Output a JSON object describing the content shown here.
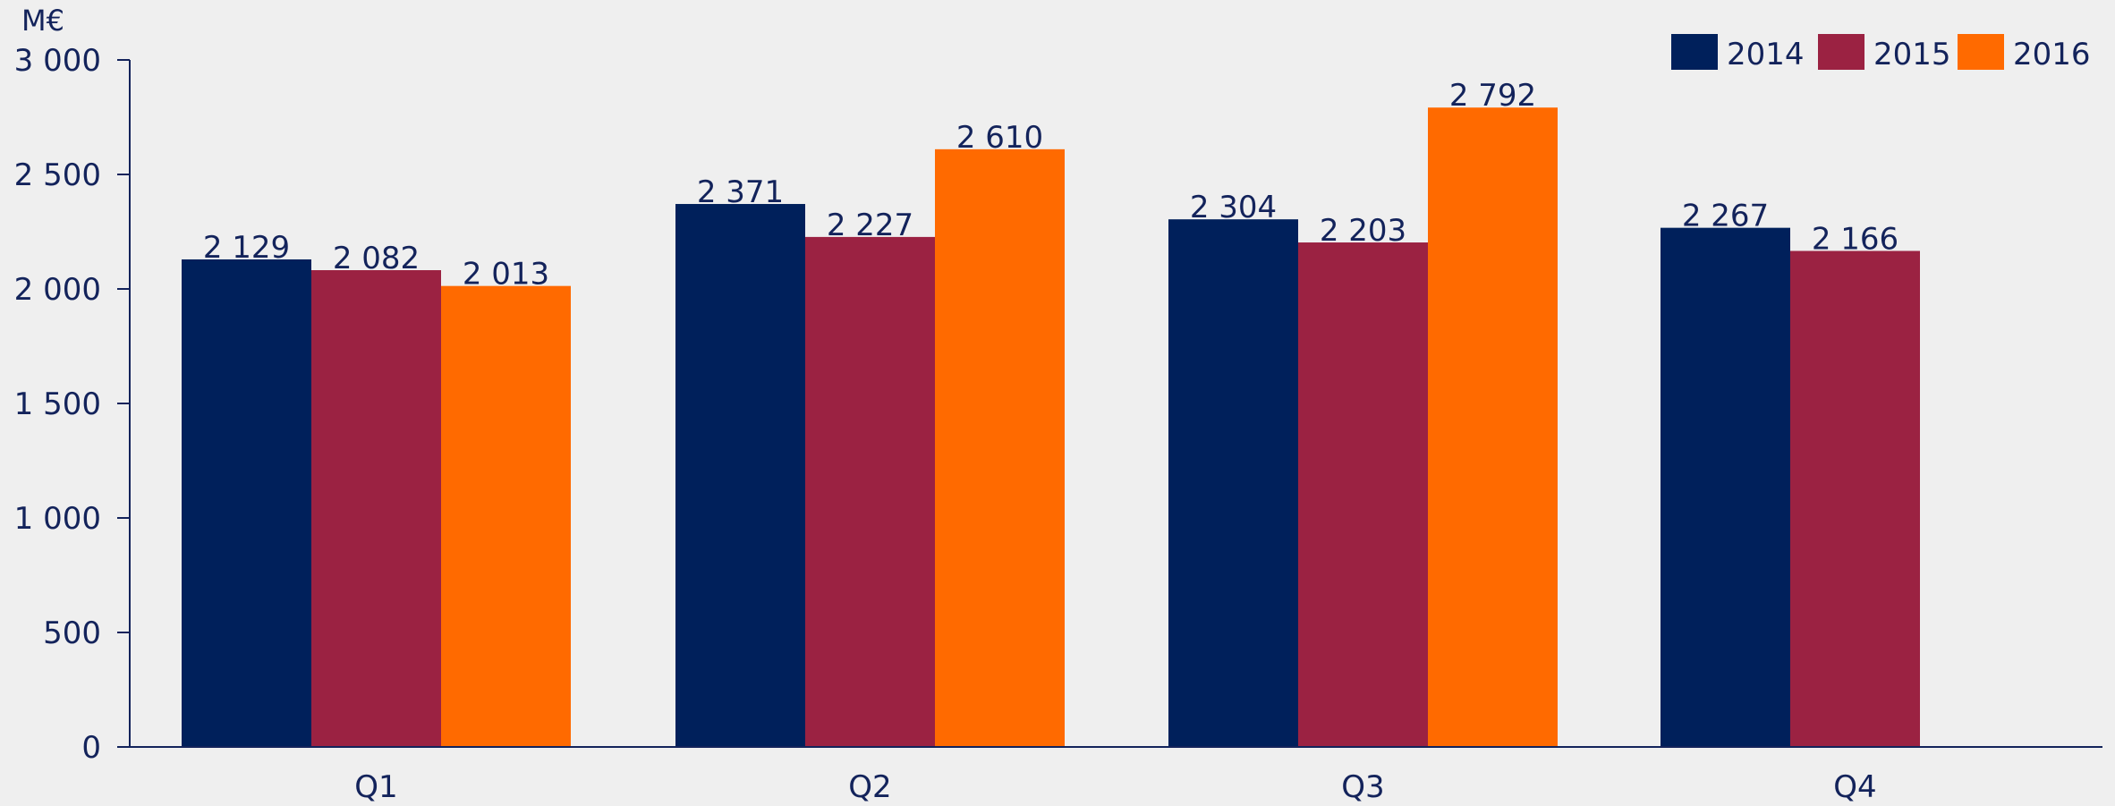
{
  "chart_data": {
    "type": "bar",
    "unit_label": "M€",
    "categories": [
      "Q1",
      "Q2",
      "Q3",
      "Q4"
    ],
    "series": [
      {
        "name": "2014",
        "color": "#00205b",
        "values": [
          2129,
          2371,
          2304,
          2267
        ]
      },
      {
        "name": "2015",
        "color": "#9b2242",
        "values": [
          2082,
          2227,
          2203,
          2166
        ]
      },
      {
        "name": "2016",
        "color": "#ff6a00",
        "values": [
          2013,
          2610,
          2792,
          null
        ]
      }
    ],
    "value_labels": [
      [
        "2 129",
        "2 371",
        "2 304",
        "2 267"
      ],
      [
        "2 082",
        "2 227",
        "2 203",
        "2 166"
      ],
      [
        "2 013",
        "2 610",
        "2 792",
        null
      ]
    ],
    "yticks": [
      0,
      500,
      1000,
      1500,
      2000,
      2500,
      3000
    ],
    "ytick_labels": [
      "0",
      "500",
      "1 000",
      "1 500",
      "2 000",
      "2 500",
      "3 000"
    ],
    "ylim": [
      0,
      3000
    ],
    "grid": false,
    "legend_position": "top-right",
    "axis_color": "#13235b",
    "text_color": "#13235b"
  }
}
